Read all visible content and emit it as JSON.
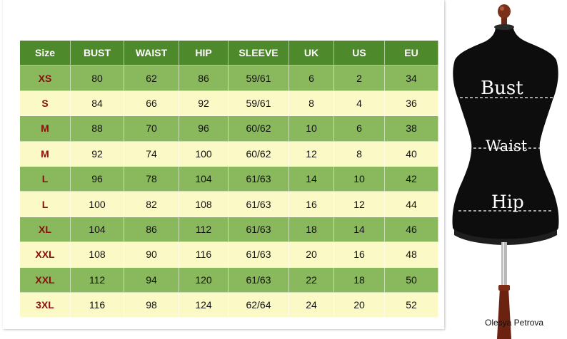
{
  "table": {
    "headers": [
      "Size",
      "BUST",
      "WAIST",
      "HIP",
      "SLEEVE",
      "UK",
      "US",
      "EU"
    ],
    "rows": [
      [
        "XS",
        "80",
        "62",
        "86",
        "59/61",
        "6",
        "2",
        "34"
      ],
      [
        "S",
        "84",
        "66",
        "92",
        "59/61",
        "8",
        "4",
        "36"
      ],
      [
        "M",
        "88",
        "70",
        "96",
        "60/62",
        "10",
        "6",
        "38"
      ],
      [
        "M",
        "92",
        "74",
        "100",
        "60/62",
        "12",
        "8",
        "40"
      ],
      [
        "L",
        "96",
        "78",
        "104",
        "61/63",
        "14",
        "10",
        "42"
      ],
      [
        "L",
        "100",
        "82",
        "108",
        "61/63",
        "16",
        "12",
        "44"
      ],
      [
        "XL",
        "104",
        "86",
        "112",
        "61/63",
        "18",
        "14",
        "46"
      ],
      [
        "XXL",
        "108",
        "90",
        "116",
        "61/63",
        "20",
        "16",
        "48"
      ],
      [
        "XXL",
        "112",
        "94",
        "120",
        "61/63",
        "22",
        "18",
        "50"
      ],
      [
        "3XL",
        "116",
        "98",
        "124",
        "62/64",
        "24",
        "20",
        "52"
      ]
    ]
  },
  "mannequin": {
    "bust_label": "Bust",
    "waist_label": "Waist",
    "hip_label": "Hip"
  },
  "credit": "Olesya Petrova",
  "colors": {
    "header_green": "#4e8a2b",
    "row_green": "#8ab85c",
    "row_cream": "#fbf9c6",
    "size_text": "#8b0e0e"
  }
}
